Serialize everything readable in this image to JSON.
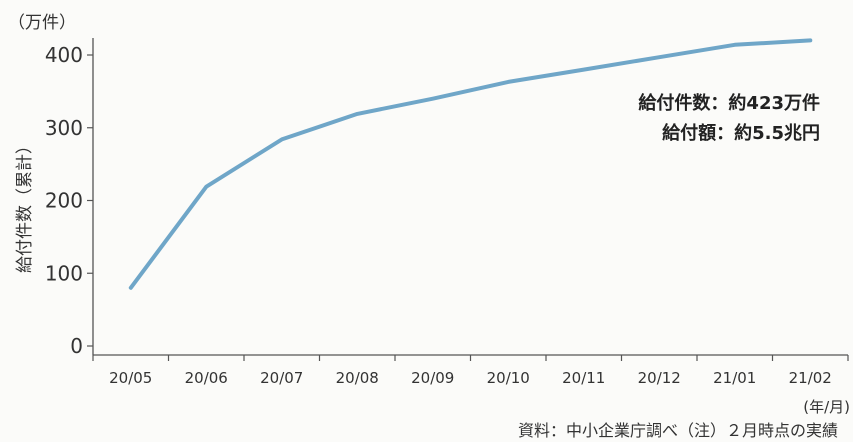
{
  "chart_data": {
    "type": "line",
    "unit_label": "（万件）",
    "ylabel": "給付件数（累計）",
    "xlabel_unit": "(年/月)",
    "categories": [
      "20/05",
      "20/06",
      "20/07",
      "20/08",
      "20/09",
      "20/10",
      "20/11",
      "20/12",
      "21/01",
      "21/02"
    ],
    "series": [
      {
        "values": [
          80,
          219,
          284,
          319,
          340,
          363,
          380,
          397,
          414,
          420
        ],
        "color": "#6fa6c8"
      }
    ],
    "ylim": [
      0,
      430
    ],
    "yticks": [
      0,
      100,
      200,
      300,
      400
    ],
    "grid": false,
    "annotations": [
      "給付件数：約423万件",
      "給付額：約5.5兆円"
    ],
    "source": "資料：中小企業庁調べ（注）２月時点の実績"
  }
}
